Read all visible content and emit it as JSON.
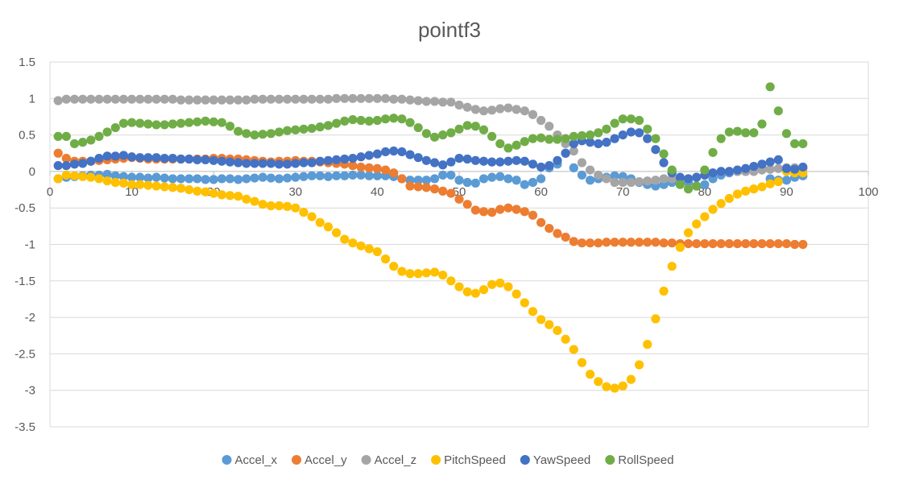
{
  "chart_data": {
    "type": "scatter",
    "title": "pointf3",
    "xlabel": "",
    "ylabel": "",
    "xlim": [
      0,
      100
    ],
    "ylim": [
      -3.5,
      1.5
    ],
    "xticks": [
      0,
      10,
      20,
      30,
      40,
      50,
      60,
      70,
      80,
      90,
      100
    ],
    "yticks": [
      1.5,
      1,
      0.5,
      0,
      -0.5,
      -1,
      -1.5,
      -2,
      -2.5,
      -3,
      -3.5
    ],
    "xtick_labels": [
      "0",
      "10",
      "20",
      "30",
      "40",
      "50",
      "60",
      "70",
      "80",
      "90",
      "100"
    ],
    "ytick_labels": [
      "1.5",
      "1",
      "0.5",
      "0",
      "-0.5",
      "-1",
      "-1.5",
      "-2",
      "-2.5",
      "-3",
      "-3.5"
    ],
    "grid": "horizontal",
    "legend": "bottom",
    "x": [
      1,
      2,
      3,
      4,
      5,
      6,
      7,
      8,
      9,
      10,
      11,
      12,
      13,
      14,
      15,
      16,
      17,
      18,
      19,
      20,
      21,
      22,
      23,
      24,
      25,
      26,
      27,
      28,
      29,
      30,
      31,
      32,
      33,
      34,
      35,
      36,
      37,
      38,
      39,
      40,
      41,
      42,
      43,
      44,
      45,
      46,
      47,
      48,
      49,
      50,
      51,
      52,
      53,
      54,
      55,
      56,
      57,
      58,
      59,
      60,
      61,
      62,
      63,
      64,
      65,
      66,
      67,
      68,
      69,
      70,
      71,
      72,
      73,
      74,
      75,
      76,
      77,
      78,
      79,
      80,
      81,
      82,
      83,
      84,
      85,
      86,
      87,
      88,
      89,
      90,
      91,
      92
    ],
    "series": [
      {
        "name": "Accel_x",
        "color": "#5B9BD5",
        "values": [
          -0.1,
          -0.08,
          -0.07,
          -0.06,
          -0.05,
          -0.05,
          -0.04,
          -0.06,
          -0.07,
          -0.08,
          -0.08,
          -0.09,
          -0.08,
          -0.09,
          -0.1,
          -0.1,
          -0.1,
          -0.1,
          -0.11,
          -0.11,
          -0.1,
          -0.1,
          -0.11,
          -0.1,
          -0.09,
          -0.08,
          -0.09,
          -0.1,
          -0.09,
          -0.08,
          -0.07,
          -0.06,
          -0.06,
          -0.07,
          -0.06,
          -0.06,
          -0.05,
          -0.05,
          -0.06,
          -0.06,
          -0.06,
          -0.07,
          -0.1,
          -0.12,
          -0.12,
          -0.12,
          -0.1,
          -0.05,
          -0.05,
          -0.12,
          -0.15,
          -0.16,
          -0.1,
          -0.08,
          -0.07,
          -0.1,
          -0.12,
          -0.18,
          -0.15,
          -0.1,
          0.05,
          0.1,
          0.25,
          0.05,
          -0.05,
          -0.12,
          -0.1,
          -0.08,
          -0.06,
          -0.07,
          -0.1,
          -0.15,
          -0.18,
          -0.2,
          -0.18,
          -0.15,
          -0.12,
          -0.15,
          -0.2,
          -0.18,
          -0.1,
          -0.05,
          -0.02,
          0.0,
          0.0,
          0.02,
          0.05,
          -0.1,
          -0.12,
          -0.12,
          -0.08,
          -0.06
        ]
      },
      {
        "name": "Accel_y",
        "color": "#ED7D31",
        "values": [
          0.25,
          0.18,
          0.14,
          0.14,
          0.14,
          0.15,
          0.16,
          0.17,
          0.18,
          0.19,
          0.18,
          0.17,
          0.17,
          0.17,
          0.17,
          0.17,
          0.17,
          0.17,
          0.17,
          0.18,
          0.18,
          0.17,
          0.17,
          0.16,
          0.15,
          0.14,
          0.13,
          0.14,
          0.14,
          0.15,
          0.14,
          0.14,
          0.13,
          0.12,
          0.11,
          0.1,
          0.08,
          0.06,
          0.05,
          0.04,
          0.02,
          -0.02,
          -0.1,
          -0.2,
          -0.21,
          -0.22,
          -0.24,
          -0.27,
          -0.3,
          -0.38,
          -0.45,
          -0.53,
          -0.55,
          -0.56,
          -0.52,
          -0.5,
          -0.52,
          -0.55,
          -0.6,
          -0.7,
          -0.78,
          -0.85,
          -0.9,
          -0.96,
          -0.98,
          -0.98,
          -0.98,
          -0.97,
          -0.97,
          -0.97,
          -0.97,
          -0.97,
          -0.97,
          -0.97,
          -0.98,
          -0.98,
          -0.99,
          -0.99,
          -0.99,
          -0.99,
          -0.99,
          -0.99,
          -0.99,
          -0.99,
          -0.99,
          -0.99,
          -0.99,
          -0.99,
          -0.99,
          -0.99,
          -1.0,
          -1.0
        ]
      },
      {
        "name": "Accel_z",
        "color": "#A5A5A5",
        "values": [
          0.97,
          0.99,
          0.99,
          0.99,
          0.99,
          0.99,
          0.99,
          0.99,
          0.99,
          0.99,
          0.99,
          0.99,
          0.99,
          0.99,
          0.99,
          0.98,
          0.98,
          0.98,
          0.98,
          0.98,
          0.98,
          0.98,
          0.98,
          0.98,
          0.99,
          0.99,
          0.99,
          0.99,
          0.99,
          0.99,
          0.99,
          0.99,
          0.99,
          0.99,
          1.0,
          1.0,
          1.0,
          1.0,
          1.0,
          1.0,
          1.0,
          0.99,
          0.99,
          0.98,
          0.97,
          0.96,
          0.96,
          0.95,
          0.95,
          0.91,
          0.88,
          0.85,
          0.83,
          0.84,
          0.86,
          0.87,
          0.85,
          0.83,
          0.78,
          0.7,
          0.62,
          0.5,
          0.38,
          0.28,
          0.12,
          0.02,
          -0.05,
          -0.1,
          -0.15,
          -0.15,
          -0.15,
          -0.14,
          -0.13,
          -0.12,
          -0.1,
          -0.1,
          -0.1,
          -0.1,
          -0.08,
          -0.05,
          -0.02,
          0.0,
          0.0,
          0.0,
          0.0,
          0.0,
          0.02,
          0.03,
          0.04,
          0.05,
          0.05,
          0.04
        ]
      },
      {
        "name": "PitchSpeed",
        "color": "#FFC000",
        "values": [
          -0.1,
          -0.05,
          -0.06,
          -0.07,
          -0.08,
          -0.1,
          -0.13,
          -0.15,
          -0.16,
          -0.18,
          -0.18,
          -0.19,
          -0.2,
          -0.21,
          -0.22,
          -0.23,
          -0.25,
          -0.27,
          -0.28,
          -0.3,
          -0.32,
          -0.33,
          -0.34,
          -0.38,
          -0.41,
          -0.45,
          -0.47,
          -0.47,
          -0.48,
          -0.5,
          -0.56,
          -0.62,
          -0.7,
          -0.76,
          -0.84,
          -0.93,
          -0.98,
          -1.02,
          -1.06,
          -1.1,
          -1.2,
          -1.3,
          -1.37,
          -1.4,
          -1.4,
          -1.39,
          -1.38,
          -1.42,
          -1.5,
          -1.58,
          -1.65,
          -1.67,
          -1.62,
          -1.55,
          -1.53,
          -1.58,
          -1.68,
          -1.8,
          -1.92,
          -2.03,
          -2.1,
          -2.18,
          -2.3,
          -2.44,
          -2.62,
          -2.78,
          -2.88,
          -2.95,
          -2.97,
          -2.94,
          -2.85,
          -2.65,
          -2.37,
          -2.02,
          -1.64,
          -1.3,
          -1.04,
          -0.84,
          -0.72,
          -0.62,
          -0.52,
          -0.44,
          -0.37,
          -0.31,
          -0.27,
          -0.24,
          -0.21,
          -0.17,
          -0.14,
          0.0,
          -0.02,
          -0.02
        ]
      },
      {
        "name": "YawSpeed",
        "color": "#4472C4",
        "values": [
          0.08,
          0.08,
          0.1,
          0.11,
          0.14,
          0.18,
          0.21,
          0.21,
          0.22,
          0.2,
          0.19,
          0.19,
          0.19,
          0.18,
          0.18,
          0.17,
          0.17,
          0.16,
          0.16,
          0.15,
          0.14,
          0.13,
          0.12,
          0.11,
          0.11,
          0.11,
          0.11,
          0.1,
          0.1,
          0.11,
          0.12,
          0.12,
          0.14,
          0.15,
          0.16,
          0.17,
          0.18,
          0.2,
          0.22,
          0.24,
          0.27,
          0.28,
          0.27,
          0.23,
          0.19,
          0.15,
          0.12,
          0.09,
          0.13,
          0.18,
          0.17,
          0.15,
          0.14,
          0.13,
          0.13,
          0.14,
          0.15,
          0.14,
          0.1,
          0.06,
          0.08,
          0.15,
          0.25,
          0.38,
          0.42,
          0.4,
          0.38,
          0.4,
          0.45,
          0.5,
          0.54,
          0.53,
          0.45,
          0.3,
          0.12,
          -0.02,
          -0.08,
          -0.1,
          -0.08,
          -0.05,
          -0.02,
          0.0,
          0.0,
          0.02,
          0.04,
          0.07,
          0.1,
          0.13,
          0.16,
          0.04,
          0.03,
          0.06
        ]
      },
      {
        "name": "RollSpeed",
        "color": "#70AD47",
        "values": [
          0.48,
          0.48,
          0.38,
          0.4,
          0.43,
          0.48,
          0.54,
          0.6,
          0.66,
          0.67,
          0.66,
          0.65,
          0.64,
          0.64,
          0.65,
          0.66,
          0.67,
          0.68,
          0.69,
          0.68,
          0.67,
          0.62,
          0.55,
          0.52,
          0.5,
          0.51,
          0.52,
          0.54,
          0.56,
          0.57,
          0.58,
          0.59,
          0.61,
          0.63,
          0.66,
          0.69,
          0.71,
          0.7,
          0.69,
          0.7,
          0.72,
          0.73,
          0.72,
          0.67,
          0.6,
          0.52,
          0.47,
          0.5,
          0.53,
          0.58,
          0.63,
          0.62,
          0.57,
          0.48,
          0.38,
          0.32,
          0.36,
          0.41,
          0.45,
          0.46,
          0.44,
          0.44,
          0.45,
          0.48,
          0.49,
          0.5,
          0.53,
          0.58,
          0.66,
          0.72,
          0.72,
          0.7,
          0.58,
          0.45,
          0.24,
          0.02,
          -0.18,
          -0.24,
          -0.2,
          0.02,
          0.26,
          0.45,
          0.54,
          0.55,
          0.53,
          0.53,
          0.65,
          1.16,
          0.83,
          0.52,
          0.38,
          0.38
        ]
      }
    ]
  }
}
